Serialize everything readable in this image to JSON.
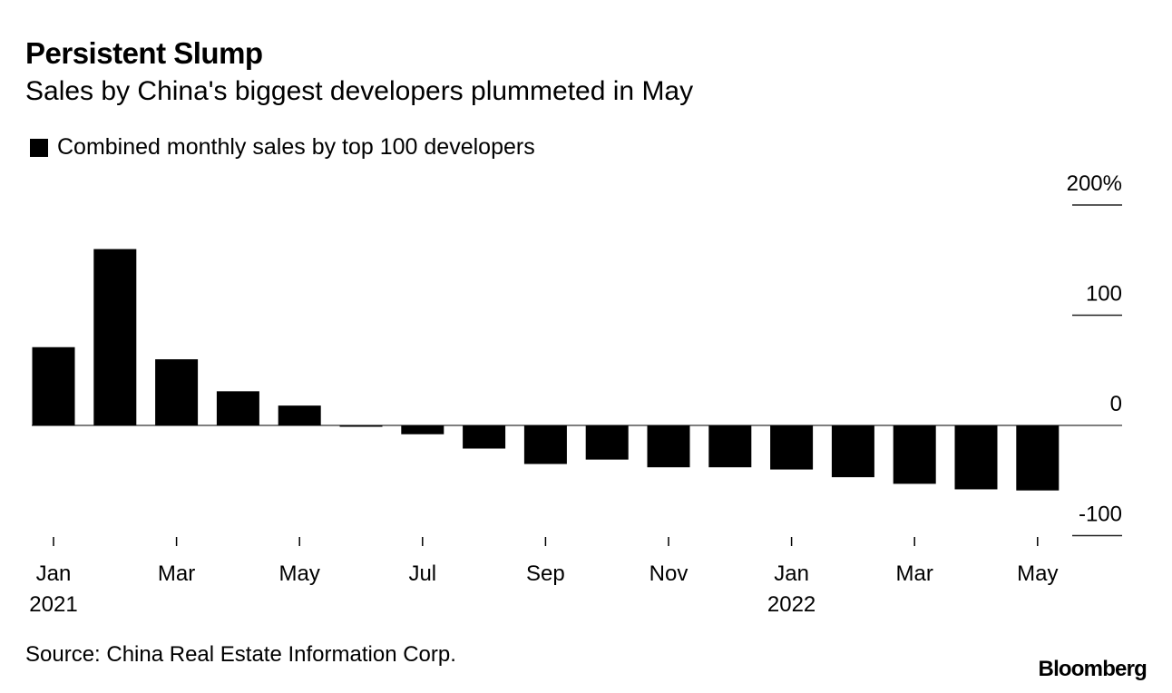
{
  "chart_data": {
    "type": "bar",
    "title": "Persistent Slump",
    "subtitle": "Sales by China's biggest developers plummeted in May",
    "legend": [
      {
        "name": "Combined monthly sales by top 100 developers",
        "color": "#000000"
      }
    ],
    "legend_position": "top-left",
    "categories": [
      "Jan 2021",
      "Feb 2021",
      "Mar 2021",
      "Apr 2021",
      "May 2021",
      "Jun 2021",
      "Jul 2021",
      "Aug 2021",
      "Sep 2021",
      "Oct 2021",
      "Nov 2021",
      "Dec 2021",
      "Jan 2022",
      "Feb 2022",
      "Mar 2022",
      "Apr 2022",
      "May 2022"
    ],
    "series": [
      {
        "name": "Combined monthly sales by top 100 developers",
        "color": "#000000",
        "values": [
          71,
          160,
          60,
          31,
          18,
          -1,
          -8,
          -21,
          -35,
          -31,
          -38,
          -38,
          -40,
          -47,
          -53,
          -58,
          -59
        ]
      }
    ],
    "xlabel": "",
    "ylabel": "",
    "ylim": [
      -100,
      200
    ],
    "yticks": [
      {
        "value": 200,
        "label": "200%"
      },
      {
        "value": 100,
        "label": "100"
      },
      {
        "value": 0,
        "label": "0"
      },
      {
        "value": -100,
        "label": "-100"
      }
    ],
    "xticks": [
      {
        "index": 0,
        "label": "Jan",
        "sublabel": "2021"
      },
      {
        "index": 2,
        "label": "Mar",
        "sublabel": ""
      },
      {
        "index": 4,
        "label": "May",
        "sublabel": ""
      },
      {
        "index": 6,
        "label": "Jul",
        "sublabel": ""
      },
      {
        "index": 8,
        "label": "Sep",
        "sublabel": ""
      },
      {
        "index": 10,
        "label": "Nov",
        "sublabel": ""
      },
      {
        "index": 12,
        "label": "Jan",
        "sublabel": "2022"
      },
      {
        "index": 14,
        "label": "Mar",
        "sublabel": ""
      },
      {
        "index": 16,
        "label": "May",
        "sublabel": ""
      }
    ],
    "grid": true,
    "y_axis_side": "right",
    "source": "Source: China Real Estate Information Corp.",
    "brand": "Bloomberg"
  }
}
